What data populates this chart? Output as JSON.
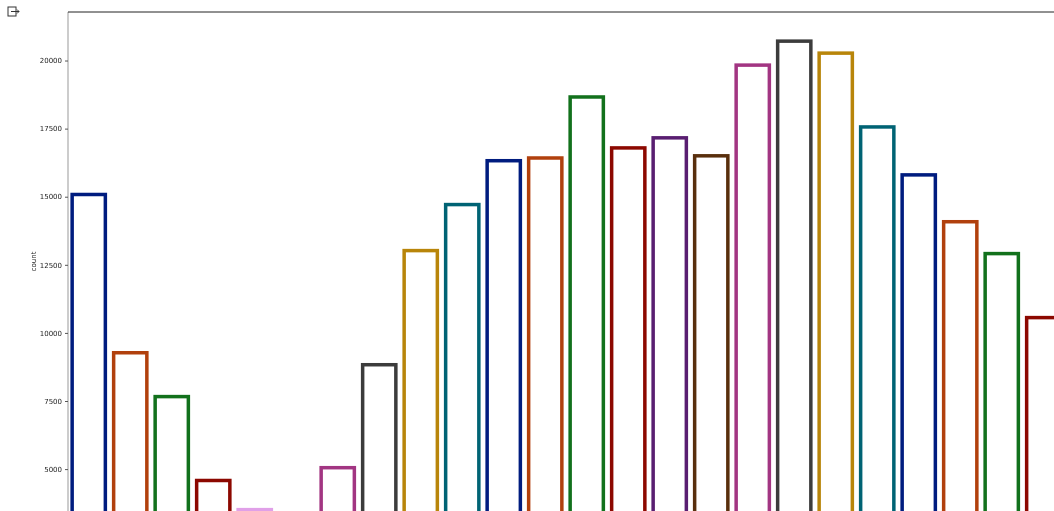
{
  "chart_data": {
    "type": "bar",
    "ylabel": "count",
    "categories": [
      null,
      null,
      null,
      null,
      null,
      null,
      null,
      null,
      null,
      null,
      null,
      null,
      null,
      null,
      null,
      null,
      null,
      null,
      null,
      null,
      null,
      null,
      null,
      null
    ],
    "values": [
      15100,
      9290,
      7680,
      4600,
      3530,
      null,
      5070,
      8850,
      13040,
      14730,
      16340,
      16440,
      18680,
      16810,
      17180,
      16520,
      19850,
      20730,
      20290,
      17580,
      15820,
      14100,
      12930,
      10580
    ],
    "colors": [
      "#001c7f",
      "#b1400d",
      "#12711c",
      "#8c0800",
      "#e0a0e8",
      null,
      "#a23582",
      "#3c3c3c",
      "#b8850a",
      "#006374",
      "#001c7f",
      "#b1400d",
      "#12711c",
      "#8c0800",
      "#591e71",
      "#592f0d",
      "#a23582",
      "#3c3c3c",
      "#b8850a",
      "#006374",
      "#001c7f",
      "#b1400d",
      "#12711c",
      "#8c0800"
    ],
    "ylim": [
      3480,
      21800
    ],
    "yticks": [
      5000,
      7500,
      10000,
      12500,
      15000,
      17500,
      20000
    ],
    "grid": false
  }
}
